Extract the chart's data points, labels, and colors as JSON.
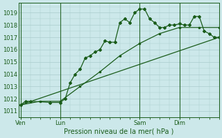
{
  "background_color": "#cce8ea",
  "grid_color": "#aacccc",
  "line_color": "#1a5c1a",
  "title": "Pression niveau de la mer( hPa )",
  "ylabel_ticks": [
    1011,
    1012,
    1013,
    1014,
    1015,
    1016,
    1017,
    1018,
    1019
  ],
  "ylim": [
    1010.5,
    1019.8
  ],
  "day_labels": [
    "Ven",
    "Lun",
    "Sam",
    "Dim"
  ],
  "day_positions": [
    0,
    2,
    6,
    8
  ],
  "xlim": [
    -0.1,
    10.0
  ],
  "series1_x": [
    0.0,
    0.25,
    0.5,
    1.5,
    2.0,
    2.25,
    2.5,
    2.75,
    3.0,
    3.25,
    3.5,
    3.75,
    4.0,
    4.25,
    4.5,
    4.75,
    5.0,
    5.25,
    5.5,
    5.75,
    6.0,
    6.25,
    6.5,
    6.75,
    7.0,
    7.25,
    7.5,
    7.75,
    8.0,
    8.25,
    8.5,
    8.75,
    9.0,
    9.25,
    9.5,
    9.75,
    10.0
  ],
  "series1_y": [
    1011.5,
    1011.8,
    1011.8,
    1011.7,
    1011.7,
    1012.0,
    1013.3,
    1014.0,
    1014.4,
    1015.3,
    1015.5,
    1015.8,
    1016.0,
    1016.7,
    1016.6,
    1016.6,
    1018.2,
    1018.5,
    1018.2,
    1019.0,
    1019.3,
    1019.3,
    1018.5,
    1018.2,
    1017.8,
    1017.8,
    1018.0,
    1018.0,
    1018.1,
    1018.0,
    1018.0,
    1018.7,
    1018.7,
    1017.5,
    1017.3,
    1017.0,
    1017.0
  ],
  "series2_x": [
    0.0,
    1.0,
    2.0,
    3.0,
    4.0,
    5.0,
    6.0,
    7.0,
    8.0,
    9.0,
    10.0
  ],
  "series2_y": [
    1011.5,
    1011.8,
    1011.8,
    1013.0,
    1014.2,
    1015.5,
    1016.5,
    1017.3,
    1017.8,
    1017.8,
    1017.8
  ],
  "series3_x": [
    0.0,
    10.0
  ],
  "series3_y": [
    1011.5,
    1017.0
  ]
}
